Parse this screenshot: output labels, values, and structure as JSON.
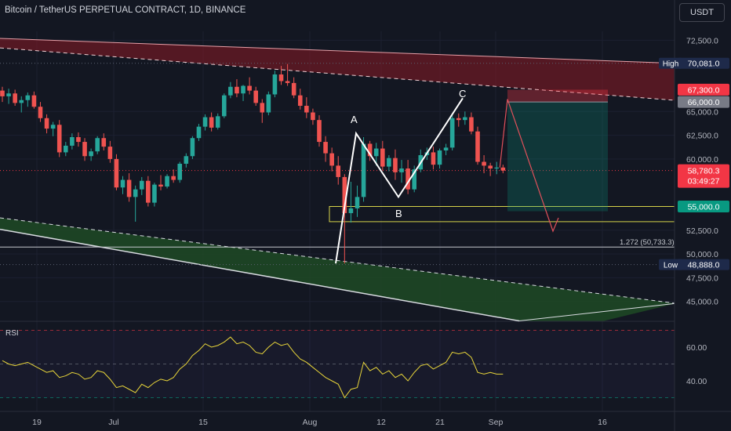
{
  "header": {
    "title": "Bitcoin / TetherUS PERPETUAL CONTRACT, 1D, BINANCE",
    "currency_button": "USDT"
  },
  "price_axis": {
    "ticks": [
      "72,500.0",
      "65,000.0",
      "62,500.0",
      "60,000.0",
      "52,500.0",
      "50,000.0",
      "47,500.0",
      "45,000.0"
    ],
    "tick_values": [
      72500,
      65000,
      62500,
      60000,
      52500,
      50000,
      47500,
      45000
    ]
  },
  "price_tags": {
    "high": {
      "label": "High",
      "value": "70,081.0",
      "color": "#1e2a4a",
      "label_color": "#ffffff"
    },
    "low": {
      "label": "Low",
      "value": "48,888.0",
      "color": "#1e2a4a",
      "label_color": "#ffffff"
    },
    "stop": {
      "value": "67,300.0",
      "color": "#f23645"
    },
    "entry": {
      "value": "66,000.0",
      "color": "#787b86"
    },
    "target": {
      "value": "55,000.0",
      "color": "#089981"
    },
    "last": {
      "value": "58,780.3",
      "countdown": "03:49:27",
      "color": "#f23645"
    }
  },
  "fib_label": "1.272 (50,733.3)",
  "pattern_labels": {
    "A": "A",
    "B": "B",
    "C": "C"
  },
  "rsi": {
    "label": "RSI",
    "ticks": [
      "60.00",
      "40.00"
    ],
    "tick_values": [
      60,
      40
    ],
    "line_color": "#e8d53a"
  },
  "time_axis": {
    "labels": [
      "19",
      "Jul",
      "15",
      "Aug",
      "12",
      "21",
      "Sep",
      "16"
    ]
  },
  "colors": {
    "background": "#131722",
    "up": "#26a69a",
    "down": "#ef5350",
    "resistance_band": "#8b1a24",
    "support_band": "#1f4a25",
    "pattern": "#ffffff",
    "zone": "#d8d44a"
  },
  "chart_data": {
    "type": "candlestick",
    "title": "Bitcoin / TetherUS PERPETUAL CONTRACT, 1D, BINANCE",
    "x_labels": [
      "19",
      "Jul",
      "15",
      "Aug",
      "12",
      "21",
      "Sep",
      "16"
    ],
    "y_range": [
      42500,
      75500
    ],
    "candles": [
      [
        67200,
        67600,
        66000,
        66600
      ],
      [
        66600,
        67400,
        65800,
        66900
      ],
      [
        66900,
        67300,
        65600,
        65900
      ],
      [
        65900,
        66600,
        64900,
        66200
      ],
      [
        66200,
        67000,
        65500,
        66700
      ],
      [
        66700,
        67100,
        65300,
        65500
      ],
      [
        65500,
        66000,
        63900,
        64300
      ],
      [
        64300,
        64700,
        62700,
        63200
      ],
      [
        63200,
        63900,
        62400,
        63600
      ],
      [
        63600,
        64100,
        60200,
        60700
      ],
      [
        60700,
        61800,
        60300,
        61400
      ],
      [
        61400,
        62700,
        61000,
        62300
      ],
      [
        62300,
        62800,
        61300,
        61800
      ],
      [
        61800,
        62200,
        59800,
        60300
      ],
      [
        60300,
        61100,
        59800,
        60800
      ],
      [
        60800,
        62400,
        60500,
        62200
      ],
      [
        62200,
        62700,
        60900,
        61300
      ],
      [
        61300,
        61900,
        59600,
        60000
      ],
      [
        60000,
        60500,
        56700,
        57000
      ],
      [
        57000,
        58200,
        56300,
        57800
      ],
      [
        57800,
        58500,
        55500,
        56000
      ],
      [
        56000,
        57200,
        53400,
        56800
      ],
      [
        56800,
        58100,
        56200,
        57700
      ],
      [
        57700,
        58200,
        55000,
        55400
      ],
      [
        55400,
        57500,
        55000,
        57300
      ],
      [
        57300,
        58300,
        56700,
        57100
      ],
      [
        57100,
        58400,
        56900,
        58200
      ],
      [
        58200,
        58900,
        57500,
        57800
      ],
      [
        57800,
        59700,
        57500,
        59500
      ],
      [
        59500,
        60600,
        59100,
        60300
      ],
      [
        60300,
        62400,
        60000,
        62200
      ],
      [
        62200,
        63700,
        61900,
        63400
      ],
      [
        63400,
        64700,
        63000,
        64400
      ],
      [
        64400,
        64900,
        62900,
        63300
      ],
      [
        63300,
        64800,
        63100,
        64500
      ],
      [
        64500,
        66900,
        64300,
        66700
      ],
      [
        66700,
        68100,
        66400,
        67600
      ],
      [
        67600,
        68400,
        66500,
        66900
      ],
      [
        66900,
        67800,
        66100,
        67700
      ],
      [
        67700,
        68600,
        66800,
        67200
      ],
      [
        67200,
        67600,
        65600,
        65900
      ],
      [
        65900,
        66300,
        63800,
        64900
      ],
      [
        64900,
        67100,
        64600,
        66800
      ],
      [
        66800,
        69300,
        66500,
        68900
      ],
      [
        68900,
        69800,
        67800,
        68200
      ],
      [
        68200,
        70000,
        67700,
        68000
      ],
      [
        68000,
        68600,
        66400,
        66700
      ],
      [
        66700,
        67400,
        65200,
        65600
      ],
      [
        65600,
        66500,
        64300,
        64900
      ],
      [
        64900,
        65300,
        63600,
        64100
      ],
      [
        64100,
        64600,
        61300,
        61800
      ],
      [
        61800,
        62400,
        59700,
        60600
      ],
      [
        60600,
        61200,
        58700,
        59300
      ],
      [
        59300,
        60300,
        57300,
        58100
      ],
      [
        58100,
        58400,
        49000,
        54300
      ],
      [
        54300,
        57600,
        53300,
        54800
      ],
      [
        54800,
        57200,
        53900,
        56000
      ],
      [
        56000,
        62300,
        55500,
        61600
      ],
      [
        61600,
        61900,
        59800,
        60300
      ],
      [
        60300,
        61700,
        59300,
        61100
      ],
      [
        61100,
        61900,
        58800,
        59200
      ],
      [
        59200,
        60400,
        58700,
        60100
      ],
      [
        60100,
        61000,
        57800,
        58600
      ],
      [
        58600,
        59900,
        57500,
        59000
      ],
      [
        59000,
        59900,
        56300,
        56800
      ],
      [
        56800,
        59300,
        56500,
        58900
      ],
      [
        58900,
        61000,
        58600,
        60400
      ],
      [
        60400,
        61200,
        59900,
        60700
      ],
      [
        60700,
        61300,
        58900,
        59400
      ],
      [
        59400,
        61100,
        59000,
        60900
      ],
      [
        60900,
        61600,
        60400,
        61200
      ],
      [
        61200,
        64600,
        60900,
        64300
      ],
      [
        64300,
        64800,
        63400,
        64100
      ],
      [
        64100,
        65000,
        63600,
        64400
      ],
      [
        64400,
        64900,
        62600,
        62900
      ],
      [
        62900,
        63400,
        59400,
        59700
      ],
      [
        59700,
        60400,
        58500,
        59300
      ],
      [
        59300,
        59600,
        58200,
        59000
      ],
      [
        59000,
        59700,
        58400,
        59100
      ],
      [
        59100,
        59400,
        58500,
        58780
      ]
    ],
    "rsi": [
      52,
      50,
      49,
      50,
      51,
      49,
      47,
      45,
      46,
      42,
      43,
      45,
      44,
      41,
      42,
      46,
      45,
      41,
      36,
      37,
      35,
      33,
      38,
      36,
      39,
      41,
      40,
      42,
      47,
      50,
      55,
      58,
      62,
      60,
      61,
      63,
      66,
      62,
      63,
      61,
      57,
      56,
      60,
      63,
      61,
      62,
      57,
      53,
      51,
      48,
      45,
      42,
      40,
      38,
      30,
      35,
      36,
      51,
      46,
      48,
      44,
      46,
      42,
      44,
      40,
      45,
      49,
      50,
      47,
      49,
      51,
      57,
      56,
      57,
      54,
      45,
      44,
      45,
      44,
      44
    ]
  }
}
